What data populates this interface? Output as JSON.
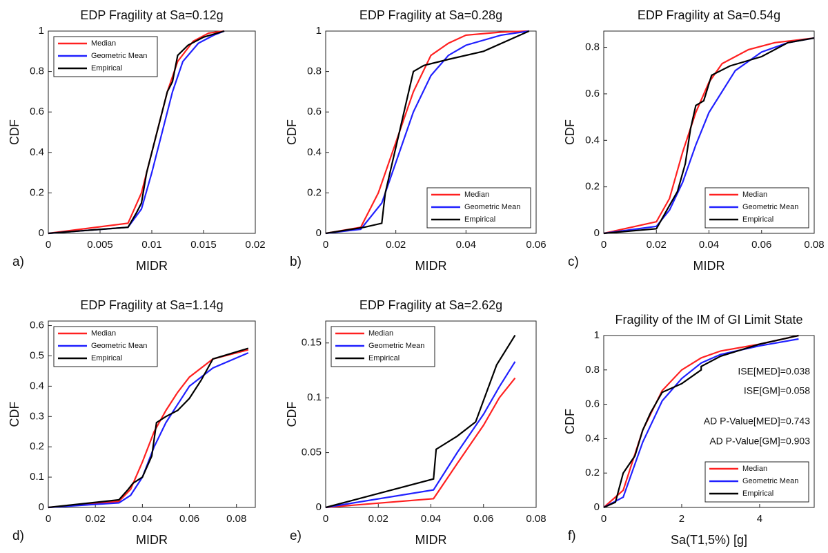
{
  "chart_data": [
    {
      "type": "line",
      "title": "EDP Fragility at Sa=0.12g",
      "xlabel": "MIDR",
      "ylabel": "CDF",
      "panel_label": "a)",
      "xlim": [
        0,
        0.02
      ],
      "ylim": [
        0,
        1
      ],
      "xticks": [
        0,
        0.005,
        0.01,
        0.015,
        0.02
      ],
      "yticks": [
        0,
        0.2,
        0.4,
        0.6,
        0.8,
        1
      ],
      "legend": "upper left",
      "grid": false,
      "series": [
        {
          "name": "Median",
          "color": "#ff2020",
          "x": [
            0,
            0.0077,
            0.009,
            0.0095,
            0.0105,
            0.0115,
            0.0125,
            0.014,
            0.0155,
            0.017
          ],
          "values": [
            0,
            0.05,
            0.2,
            0.3,
            0.5,
            0.7,
            0.85,
            0.95,
            0.99,
            1
          ]
        },
        {
          "name": "Geometric Mean",
          "color": "#2020ff",
          "x": [
            0,
            0.0077,
            0.009,
            0.01,
            0.011,
            0.012,
            0.013,
            0.0145,
            0.016,
            0.017
          ],
          "values": [
            0,
            0.03,
            0.12,
            0.3,
            0.5,
            0.7,
            0.85,
            0.94,
            0.98,
            1
          ]
        },
        {
          "name": "Empirical",
          "color": "#000000",
          "x": [
            0,
            0.0077,
            0.0085,
            0.009,
            0.0095,
            0.01,
            0.0105,
            0.011,
            0.0115,
            0.012,
            0.0125,
            0.0135,
            0.015,
            0.017
          ],
          "values": [
            0,
            0.03,
            0.1,
            0.15,
            0.3,
            0.4,
            0.5,
            0.6,
            0.7,
            0.75,
            0.88,
            0.93,
            0.97,
            1
          ]
        }
      ]
    },
    {
      "type": "line",
      "title": "EDP Fragility at Sa=0.28g",
      "xlabel": "MIDR",
      "ylabel": "CDF",
      "panel_label": "b)",
      "xlim": [
        0,
        0.06
      ],
      "ylim": [
        0,
        1
      ],
      "xticks": [
        0,
        0.02,
        0.04,
        0.06
      ],
      "yticks": [
        0,
        0.2,
        0.4,
        0.6,
        0.8,
        1
      ],
      "legend": "lower right",
      "grid": false,
      "series": [
        {
          "name": "Median",
          "color": "#ff2020",
          "x": [
            0,
            0.01,
            0.015,
            0.02,
            0.025,
            0.03,
            0.035,
            0.04,
            0.05,
            0.058
          ],
          "values": [
            0,
            0.03,
            0.2,
            0.45,
            0.7,
            0.88,
            0.94,
            0.98,
            0.995,
            1
          ]
        },
        {
          "name": "Geometric Mean",
          "color": "#2020ff",
          "x": [
            0,
            0.01,
            0.016,
            0.02,
            0.025,
            0.03,
            0.035,
            0.04,
            0.05,
            0.058
          ],
          "values": [
            0,
            0.02,
            0.15,
            0.35,
            0.6,
            0.78,
            0.88,
            0.93,
            0.98,
            1
          ]
        },
        {
          "name": "Empirical",
          "color": "#000000",
          "x": [
            0,
            0.011,
            0.016,
            0.017,
            0.019,
            0.021,
            0.023,
            0.025,
            0.028,
            0.035,
            0.045,
            0.058
          ],
          "values": [
            0,
            0.03,
            0.05,
            0.2,
            0.35,
            0.5,
            0.65,
            0.8,
            0.83,
            0.86,
            0.9,
            1
          ]
        }
      ]
    },
    {
      "type": "line",
      "title": "EDP Fragility at Sa=0.54g",
      "xlabel": "MIDR",
      "ylabel": "CDF",
      "panel_label": "c)",
      "xlim": [
        0,
        0.08
      ],
      "ylim": [
        0,
        0.87
      ],
      "xticks": [
        0,
        0.02,
        0.04,
        0.06,
        0.08
      ],
      "yticks": [
        0,
        0.2,
        0.4,
        0.6,
        0.8
      ],
      "legend": "lower right",
      "grid": false,
      "series": [
        {
          "name": "Median",
          "color": "#ff2020",
          "x": [
            0,
            0.02,
            0.025,
            0.03,
            0.035,
            0.04,
            0.045,
            0.055,
            0.065,
            0.08
          ],
          "values": [
            0,
            0.05,
            0.15,
            0.35,
            0.52,
            0.65,
            0.73,
            0.79,
            0.82,
            0.84
          ]
        },
        {
          "name": "Geometric Mean",
          "color": "#2020ff",
          "x": [
            0,
            0.02,
            0.025,
            0.03,
            0.035,
            0.04,
            0.05,
            0.06,
            0.07,
            0.08
          ],
          "values": [
            0,
            0.03,
            0.1,
            0.22,
            0.38,
            0.52,
            0.7,
            0.78,
            0.82,
            0.84
          ]
        },
        {
          "name": "Empirical",
          "color": "#000000",
          "x": [
            0,
            0.02,
            0.025,
            0.028,
            0.031,
            0.033,
            0.035,
            0.038,
            0.041,
            0.048,
            0.06,
            0.07,
            0.08
          ],
          "values": [
            0,
            0.02,
            0.12,
            0.18,
            0.3,
            0.45,
            0.55,
            0.57,
            0.68,
            0.72,
            0.76,
            0.82,
            0.84
          ]
        }
      ]
    },
    {
      "type": "line",
      "title": "EDP Fragility at Sa=1.14g",
      "xlabel": "MIDR",
      "ylabel": "CDF",
      "panel_label": "d)",
      "xlim": [
        0,
        0.088
      ],
      "ylim": [
        0,
        0.615
      ],
      "xticks": [
        0,
        0.02,
        0.04,
        0.06,
        0.08
      ],
      "yticks": [
        0,
        0.1,
        0.2,
        0.3,
        0.4,
        0.5,
        0.6
      ],
      "legend": "upper left",
      "grid": false,
      "series": [
        {
          "name": "Median",
          "color": "#ff2020",
          "x": [
            0,
            0.03,
            0.035,
            0.04,
            0.045,
            0.05,
            0.055,
            0.06,
            0.07,
            0.085
          ],
          "values": [
            0,
            0.02,
            0.06,
            0.15,
            0.25,
            0.32,
            0.38,
            0.43,
            0.49,
            0.52
          ]
        },
        {
          "name": "Geometric Mean",
          "color": "#2020ff",
          "x": [
            0,
            0.03,
            0.035,
            0.04,
            0.045,
            0.05,
            0.055,
            0.06,
            0.07,
            0.085
          ],
          "values": [
            0,
            0.015,
            0.04,
            0.1,
            0.2,
            0.28,
            0.34,
            0.4,
            0.46,
            0.51
          ]
        },
        {
          "name": "Empirical",
          "color": "#000000",
          "x": [
            0,
            0.03,
            0.034,
            0.036,
            0.04,
            0.044,
            0.046,
            0.05,
            0.055,
            0.06,
            0.065,
            0.07,
            0.085
          ],
          "values": [
            0,
            0.025,
            0.06,
            0.08,
            0.1,
            0.17,
            0.28,
            0.3,
            0.32,
            0.36,
            0.42,
            0.49,
            0.525
          ]
        }
      ]
    },
    {
      "type": "line",
      "title": "EDP Fragility at Sa=2.62g",
      "xlabel": "MIDR",
      "ylabel": "CDF",
      "panel_label": "e)",
      "xlim": [
        0,
        0.08
      ],
      "ylim": [
        0,
        0.17
      ],
      "xticks": [
        0,
        0.02,
        0.04,
        0.06,
        0.08
      ],
      "yticks": [
        0,
        0.05,
        0.1,
        0.15
      ],
      "legend": "upper left",
      "grid": false,
      "series": [
        {
          "name": "Median",
          "color": "#ff2020",
          "x": [
            0,
            0.041,
            0.05,
            0.06,
            0.066,
            0.072
          ],
          "values": [
            0,
            0.008,
            0.04,
            0.075,
            0.1,
            0.118
          ]
        },
        {
          "name": "Geometric Mean",
          "color": "#2020ff",
          "x": [
            0,
            0.041,
            0.05,
            0.06,
            0.066,
            0.072
          ],
          "values": [
            0,
            0.016,
            0.05,
            0.085,
            0.11,
            0.133
          ]
        },
        {
          "name": "Empirical",
          "color": "#000000",
          "x": [
            0,
            0.041,
            0.042,
            0.05,
            0.057,
            0.065,
            0.072
          ],
          "values": [
            0,
            0.026,
            0.053,
            0.065,
            0.078,
            0.13,
            0.157
          ]
        }
      ]
    },
    {
      "type": "line",
      "title": "Fragility of the IM of GI Limit State",
      "xlabel": "Sa(T1,5%) [g]",
      "ylabel": "CDF",
      "panel_label": "f)",
      "xlim": [
        0,
        5.4
      ],
      "ylim": [
        0,
        1
      ],
      "xticks": [
        0,
        2,
        4
      ],
      "yticks": [
        0,
        0.2,
        0.4,
        0.6,
        0.8,
        1
      ],
      "legend": "lower right",
      "grid": false,
      "annotations": [
        "ISE[MED]=0.038",
        "ISE[GM]=0.058",
        "AD P-Value[MED]=0.743",
        "AD P-Value[GM]=0.903"
      ],
      "series": [
        {
          "name": "Median",
          "color": "#ff2020",
          "x": [
            0,
            0.5,
            1,
            1.5,
            2,
            2.5,
            3,
            4,
            5
          ],
          "values": [
            0,
            0.1,
            0.45,
            0.68,
            0.8,
            0.87,
            0.91,
            0.95,
            1
          ]
        },
        {
          "name": "Geometric Mean",
          "color": "#2020ff",
          "x": [
            0,
            0.5,
            1,
            1.5,
            2,
            2.5,
            3,
            4,
            5
          ],
          "values": [
            0,
            0.06,
            0.38,
            0.62,
            0.75,
            0.84,
            0.89,
            0.94,
            0.98
          ]
        },
        {
          "name": "Empirical",
          "color": "#000000",
          "x": [
            0,
            0.3,
            0.5,
            0.8,
            1,
            1.2,
            1.5,
            2,
            2.5,
            2.5,
            3,
            4,
            5
          ],
          "values": [
            0,
            0.03,
            0.2,
            0.3,
            0.45,
            0.55,
            0.67,
            0.72,
            0.8,
            0.82,
            0.88,
            0.95,
            1
          ]
        }
      ]
    }
  ]
}
